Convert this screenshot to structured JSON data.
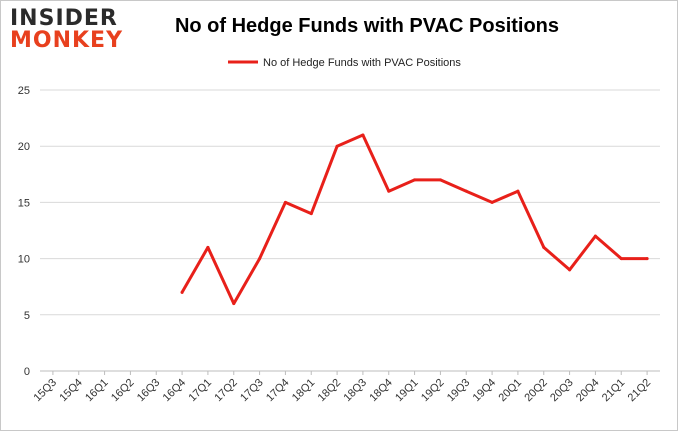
{
  "logo": {
    "line1": "INSIDER",
    "line2": "MONKEY"
  },
  "chart_data": {
    "type": "line",
    "title": "No of Hedge Funds with PVAC Positions",
    "xlabel": "",
    "ylabel": "",
    "categories": [
      "15Q3",
      "15Q4",
      "16Q1",
      "16Q2",
      "16Q3",
      "16Q4",
      "17Q1",
      "17Q2",
      "17Q3",
      "17Q4",
      "18Q1",
      "18Q2",
      "18Q3",
      "18Q4",
      "19Q1",
      "19Q2",
      "19Q3",
      "19Q4",
      "20Q1",
      "20Q2",
      "20Q3",
      "20Q4",
      "21Q1",
      "21Q2"
    ],
    "series": [
      {
        "name": "No of Hedge Funds with PVAC Positions",
        "color": "#e8201a",
        "values": [
          null,
          null,
          null,
          null,
          null,
          7,
          11,
          6,
          10,
          15,
          14,
          20,
          21,
          16,
          17,
          17,
          16,
          15,
          16,
          11,
          9,
          12,
          10,
          10
        ]
      }
    ],
    "ylim": [
      0,
      25
    ],
    "yticks": [
      0,
      5,
      10,
      15,
      20,
      25
    ],
    "grid": true,
    "legend": "top-center"
  }
}
